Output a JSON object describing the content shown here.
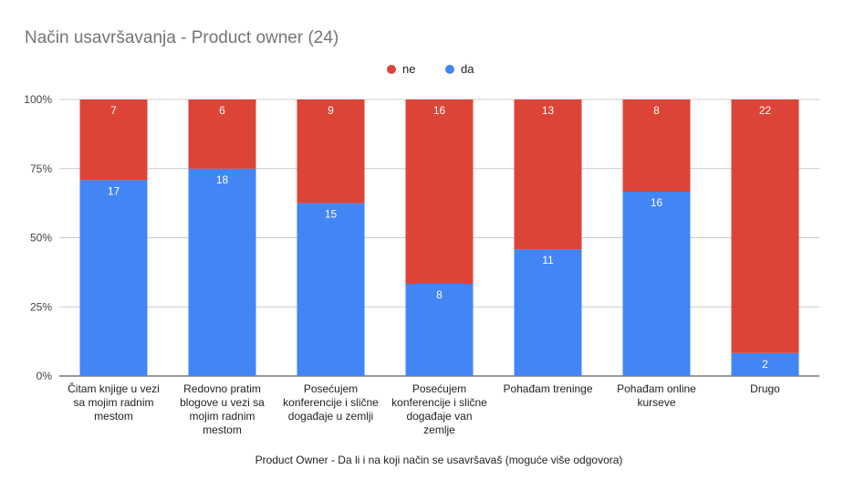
{
  "chart_data": {
    "type": "bar",
    "stacked": "percent",
    "title": "Način usavršavanja - Product owner (24)",
    "xlabel": "Product Owner - Da li i na koji način se usavršavaš (moguće više odgovora)",
    "ylabel": "",
    "ylim": [
      0,
      100
    ],
    "yticks": [
      "0%",
      "25%",
      "50%",
      "75%",
      "100%"
    ],
    "grid": true,
    "legend_position": "top",
    "categories": [
      [
        "Čitam knjige u vezi",
        "sa mojim radnim",
        "mestom"
      ],
      [
        "Redovno pratim",
        "blogove u vezi sa",
        "mojim radnim",
        "mestom"
      ],
      [
        "Posećujem",
        "konferencije i slične",
        "događaje u zemlji"
      ],
      [
        "Posećujem",
        "konferencije i slične",
        "događaje van",
        "zemlje"
      ],
      [
        "Pohađam treninge"
      ],
      [
        "Pohađam online",
        "kurseve"
      ],
      [
        "Drugo"
      ]
    ],
    "series": [
      {
        "name": "da",
        "color": "#4285f4",
        "values": [
          17,
          18,
          15,
          8,
          11,
          16,
          2
        ]
      },
      {
        "name": "ne",
        "color": "#db4437",
        "values": [
          7,
          6,
          9,
          16,
          13,
          8,
          22
        ]
      }
    ],
    "legend_order": [
      "ne",
      "da"
    ]
  }
}
